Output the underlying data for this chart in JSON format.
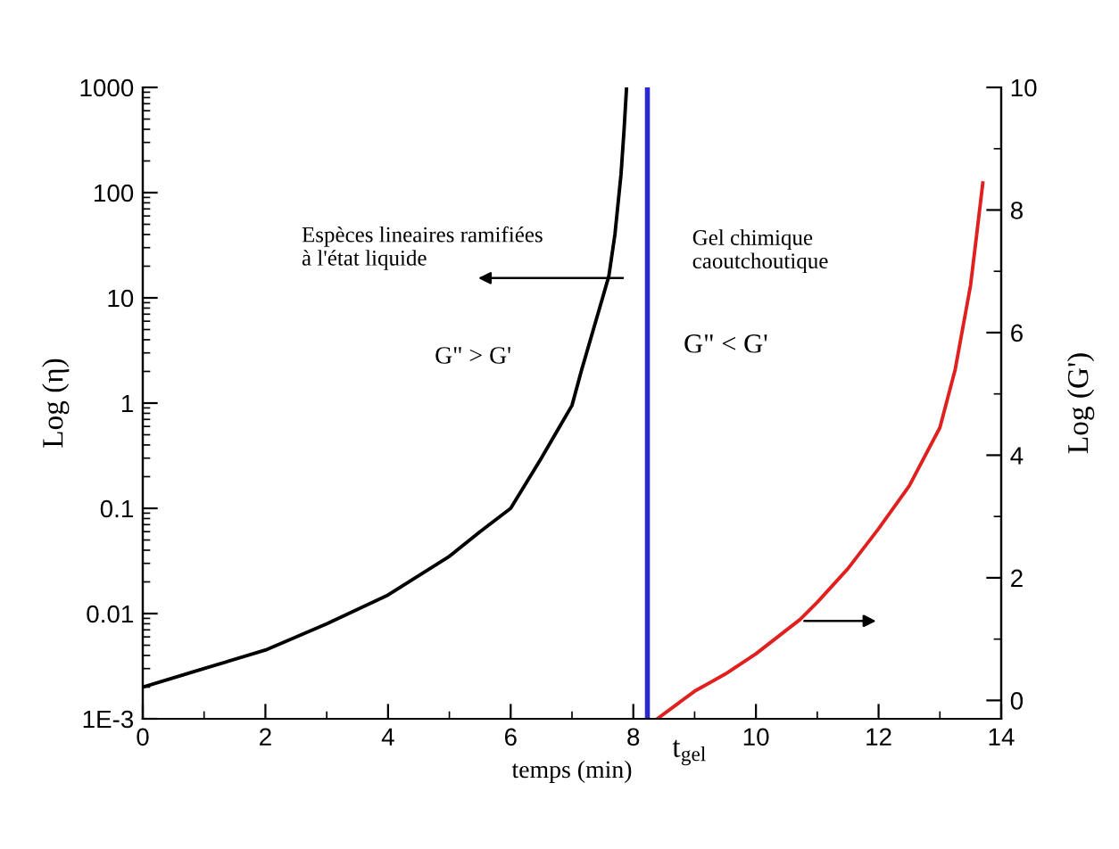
{
  "chart_data": {
    "type": "line",
    "xlabel": "temps (min)",
    "ylabel": "Log (η)",
    "y2label": "Log (G')",
    "x": [
      0,
      1,
      2,
      3,
      4,
      5,
      5.5,
      6,
      6.5,
      6.8,
      7,
      7.15,
      7.3,
      7.45,
      7.6,
      7.7,
      7.8,
      7.85,
      7.89
    ],
    "series": [
      {
        "color": "#000000",
        "values": [
          0.002,
          0.003,
          0.0045,
          0.008,
          0.015,
          0.035,
          0.06,
          0.1,
          0.3,
          0.6,
          0.95,
          2,
          4,
          8,
          16,
          40,
          150,
          400,
          1000
        ]
      },
      {
        "axis": "y2",
        "color": "#e0201e",
        "x": [
          8.39,
          9,
          9.5,
          10,
          10.72,
          11,
          11.5,
          12,
          12.5,
          13,
          13.25,
          13.5,
          13.6,
          13.7
        ],
        "values": [
          -0.3,
          0.15,
          0.43,
          0.76,
          1.32,
          1.6,
          2.15,
          2.8,
          3.5,
          4.45,
          5.4,
          6.77,
          7.6,
          8.44
        ]
      }
    ],
    "log": "y",
    "xlim": [
      0,
      14
    ],
    "xticks": [
      0,
      2,
      4,
      6,
      8,
      10,
      12,
      14
    ],
    "ylim": [
      0.001,
      1000
    ],
    "yticks": [
      {
        "value": 0.001,
        "label": "1E-3"
      },
      0.01,
      0.1,
      1,
      10,
      100,
      1000
    ],
    "y2lim": [
      -0.3,
      10
    ],
    "y2ticks": [
      0,
      2,
      4,
      6,
      8,
      10
    ],
    "ref_lines": [
      {
        "axis": "x",
        "value": 8.23,
        "label": "t$_{gel}$",
        "color": "#2a2ad0"
      }
    ],
    "annotations": [
      "Espèces lineaires ramifiées\nà l'état liquide",
      "G\" > G'",
      "Gel chimique\ncaoutchoutique",
      "G\" < G'"
    ],
    "grid": false,
    "legend": false,
    "marker": "none",
    "line_style": "solid"
  }
}
